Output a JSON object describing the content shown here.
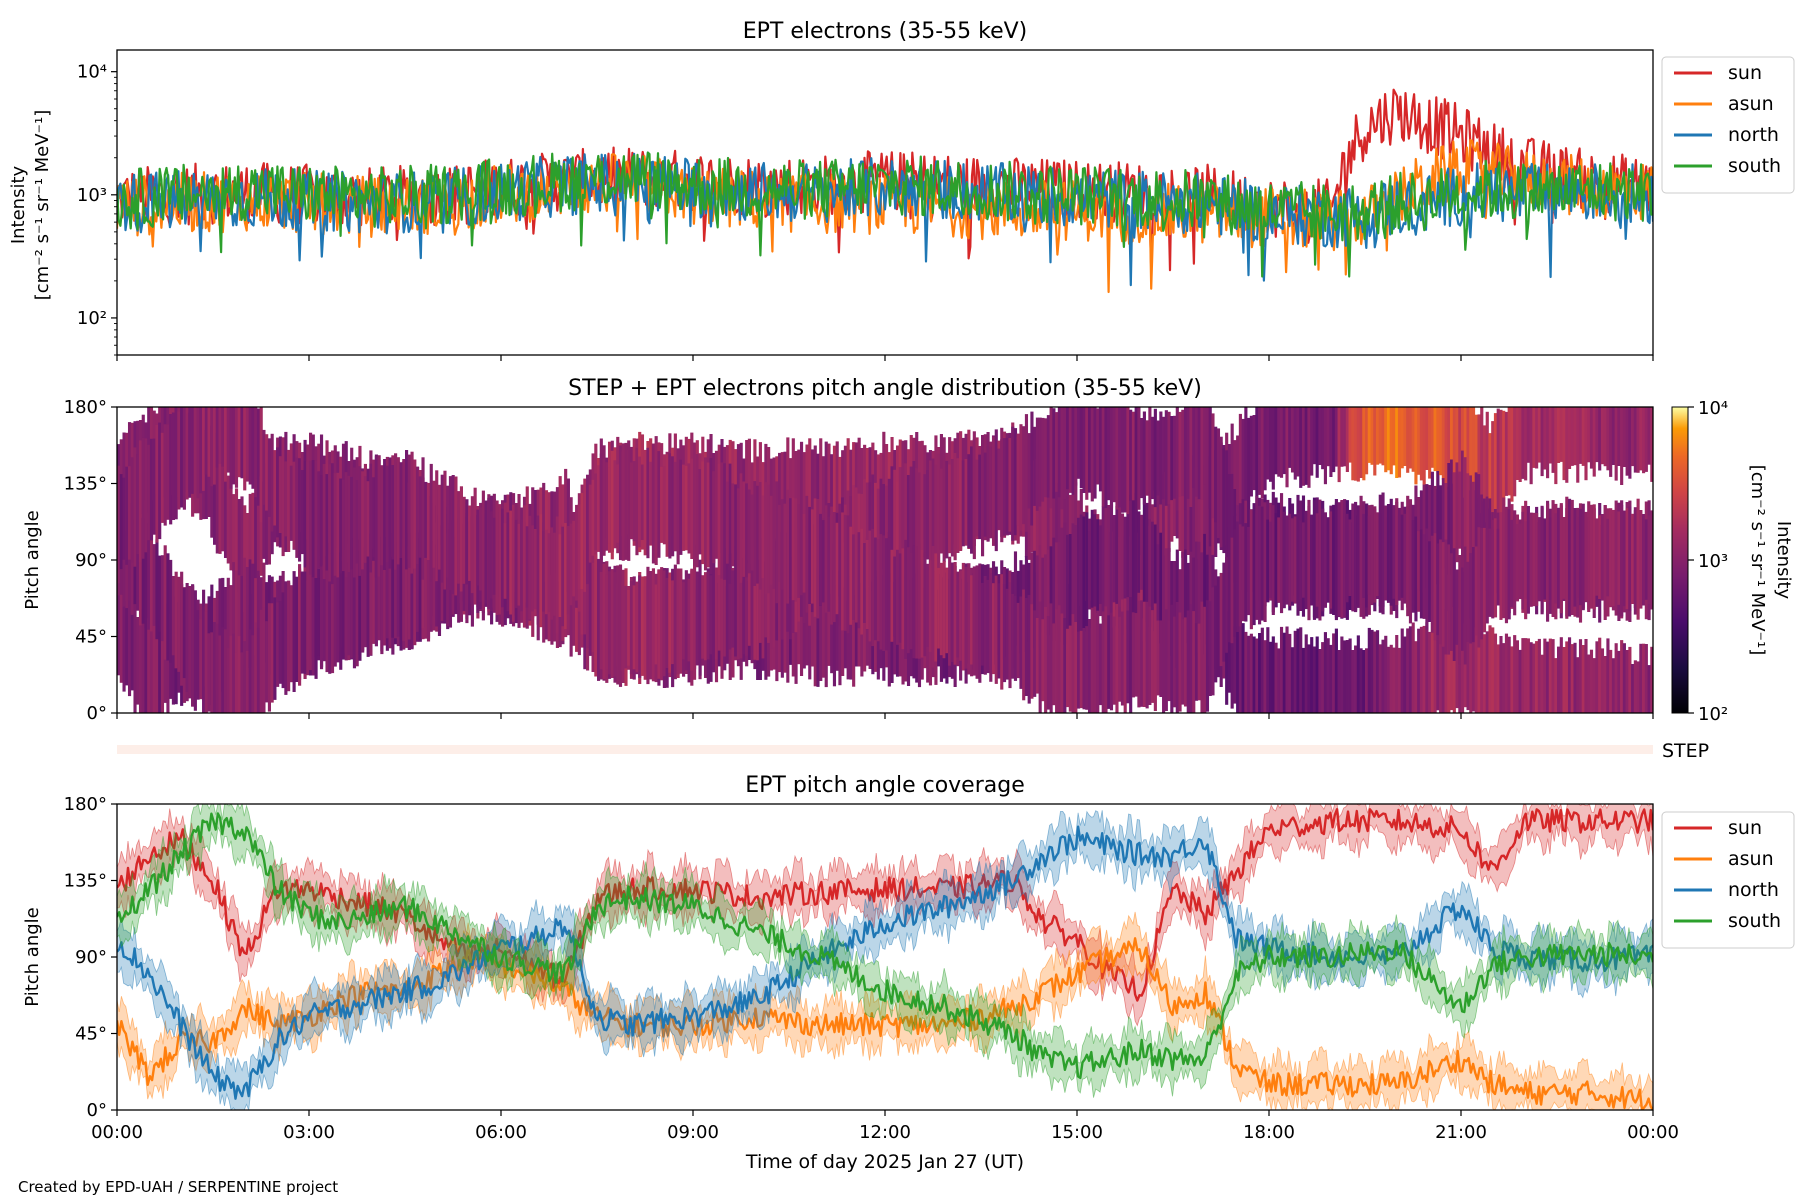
{
  "figure": {
    "footer": "Created by EPD-UAH / SERPENTINE project",
    "xlabel": "Time of day 2025 Jan 27 (UT)",
    "x_ticks": [
      "00:00",
      "03:00",
      "06:00",
      "09:00",
      "12:00",
      "15:00",
      "18:00",
      "21:00",
      "00:00"
    ]
  },
  "chart_data": [
    {
      "type": "line",
      "title": "EPT electrons (35-55 keV)",
      "ylabel_line1": "Intensity",
      "ylabel_line2": "[cm⁻² s⁻¹ sr⁻¹ MeV⁻¹]",
      "yscale": "log",
      "ylim": [
        50,
        15000
      ],
      "y_ticks": [
        {
          "value": 100,
          "label": "10²"
        },
        {
          "value": 1000,
          "label": "10³"
        },
        {
          "value": 10000,
          "label": "10⁴"
        }
      ],
      "x_unit": "hours since 2025-01-27 00:00 UT",
      "xlim": [
        0,
        24
      ],
      "legend": "outside-right-top",
      "series": [
        {
          "name": "sun",
          "color": "#d62728",
          "x": [
            0,
            1,
            2,
            3,
            4,
            5,
            6,
            7,
            8,
            9,
            10,
            11,
            12,
            13,
            14,
            15,
            16,
            17,
            18,
            19,
            19.5,
            20,
            20.5,
            21,
            21.5,
            22,
            23,
            24
          ],
          "y": [
            950,
            1000,
            1050,
            1000,
            950,
            1000,
            1150,
            1300,
            1400,
            1300,
            1200,
            1200,
            1300,
            1250,
            1150,
            1100,
            1050,
            1000,
            800,
            750,
            3500,
            4800,
            3800,
            3000,
            2200,
            1700,
            1300,
            1150
          ]
        },
        {
          "name": "asun",
          "color": "#ff7f0e",
          "x": [
            0,
            1,
            2,
            3,
            4,
            5,
            6,
            7,
            8,
            9,
            10,
            11,
            12,
            13,
            14,
            15,
            16,
            17,
            18,
            19,
            19.5,
            20,
            20.5,
            21,
            21.5,
            22,
            23,
            24
          ],
          "y": [
            800,
            850,
            900,
            850,
            800,
            850,
            1000,
            1150,
            1250,
            1000,
            900,
            850,
            850,
            800,
            750,
            750,
            700,
            700,
            650,
            600,
            650,
            900,
            1300,
            1600,
            1500,
            1300,
            1150,
            1050
          ]
        },
        {
          "name": "north",
          "color": "#1f77b4",
          "x": [
            0,
            1,
            2,
            3,
            4,
            5,
            6,
            7,
            8,
            9,
            10,
            11,
            12,
            13,
            14,
            15,
            16,
            17,
            18,
            19,
            19.5,
            20,
            20.5,
            21,
            21.5,
            22,
            23,
            24
          ],
          "y": [
            850,
            900,
            950,
            900,
            850,
            900,
            1050,
            1200,
            1300,
            1150,
            1050,
            1050,
            1150,
            1100,
            1000,
            950,
            900,
            850,
            700,
            650,
            700,
            800,
            850,
            1000,
            1050,
            1000,
            1050,
            1000
          ]
        },
        {
          "name": "south",
          "color": "#2ca02c",
          "x": [
            0,
            1,
            2,
            3,
            4,
            5,
            6,
            7,
            8,
            9,
            10,
            11,
            12,
            13,
            14,
            15,
            16,
            17,
            18,
            19,
            19.5,
            20,
            20.5,
            21,
            21.5,
            22,
            23,
            24
          ],
          "y": [
            900,
            1000,
            1100,
            1000,
            950,
            1000,
            1150,
            1300,
            1400,
            1200,
            1100,
            1100,
            1200,
            1150,
            1050,
            1000,
            950,
            900,
            750,
            700,
            750,
            850,
            900,
            1050,
            1100,
            1050,
            1100,
            1050
          ]
        }
      ]
    },
    {
      "type": "heatmap",
      "title": "STEP + EPT electrons pitch angle distribution (35-55 keV)",
      "ylabel": "Pitch angle",
      "ylim": [
        0,
        180
      ],
      "y_ticks": [
        {
          "value": 0,
          "label": "0°"
        },
        {
          "value": 45,
          "label": "45°"
        },
        {
          "value": 90,
          "label": "90°"
        },
        {
          "value": 135,
          "label": "135°"
        },
        {
          "value": 180,
          "label": "180°"
        }
      ],
      "x_unit": "hours since 2025-01-27 00:00 UT",
      "xlim": [
        0,
        24
      ],
      "colorbar": {
        "label_line1": "Intensity",
        "label_line2": "[cm⁻² s⁻¹ sr⁻¹ MeV⁻¹]",
        "scale": "log",
        "range": [
          100,
          10000
        ],
        "colormap": "inferno",
        "ticks": [
          {
            "value": 100,
            "label": "10²"
          },
          {
            "value": 1000,
            "label": "10³"
          },
          {
            "value": 10000,
            "label": "10⁴"
          }
        ]
      },
      "step_strip_label": "STEP"
    },
    {
      "type": "line",
      "title": "EPT pitch angle coverage",
      "ylabel": "Pitch angle",
      "ylim": [
        0,
        180
      ],
      "y_ticks": [
        {
          "value": 0,
          "label": "0°"
        },
        {
          "value": 45,
          "label": "45°"
        },
        {
          "value": 90,
          "label": "90°"
        },
        {
          "value": 135,
          "label": "135°"
        },
        {
          "value": 180,
          "label": "180°"
        }
      ],
      "x_unit": "hours since 2025-01-27 00:00 UT",
      "xlim": [
        0,
        24
      ],
      "legend": "outside-right-top",
      "series": [
        {
          "name": "sun",
          "color": "#d62728",
          "x": [
            0,
            0.5,
            1,
            1.5,
            2,
            2.5,
            3,
            3.5,
            4,
            4.5,
            5,
            5.5,
            6,
            6.5,
            7,
            7.5,
            8,
            9,
            10,
            11,
            12,
            13,
            14,
            14.5,
            15,
            15.5,
            16,
            16.5,
            17,
            17.5,
            18,
            19,
            20,
            21,
            21.5,
            22,
            23,
            24
          ],
          "y": [
            130,
            150,
            160,
            135,
            90,
            130,
            130,
            125,
            120,
            115,
            100,
            90,
            95,
            85,
            75,
            125,
            130,
            130,
            125,
            128,
            130,
            130,
            135,
            110,
            100,
            80,
            70,
            130,
            115,
            140,
            165,
            170,
            170,
            165,
            140,
            170,
            170,
            170
          ]
        },
        {
          "name": "asun",
          "color": "#ff7f0e",
          "x": [
            0,
            0.5,
            1,
            1.5,
            2,
            2.5,
            3,
            3.5,
            4,
            4.5,
            5,
            5.5,
            6,
            6.5,
            7,
            7.5,
            8,
            9,
            10,
            11,
            12,
            13,
            14,
            14.5,
            15,
            15.5,
            16,
            16.5,
            17,
            17.5,
            18,
            19,
            20,
            21,
            21.5,
            22,
            23,
            24
          ],
          "y": [
            50,
            20,
            40,
            40,
            60,
            50,
            55,
            65,
            70,
            70,
            80,
            90,
            85,
            80,
            70,
            55,
            50,
            50,
            55,
            50,
            50,
            50,
            60,
            70,
            80,
            90,
            95,
            60,
            70,
            25,
            15,
            15,
            15,
            30,
            15,
            10,
            10,
            5
          ]
        },
        {
          "name": "north",
          "color": "#1f77b4",
          "x": [
            0,
            0.5,
            1,
            1.5,
            2,
            2.5,
            3,
            3.5,
            4,
            4.5,
            5,
            5.5,
            6,
            6.5,
            7,
            7.5,
            8,
            9,
            10,
            11,
            12,
            13,
            14,
            14.5,
            15,
            15.5,
            16,
            16.5,
            17,
            17.5,
            18,
            19,
            20,
            21,
            21.5,
            22,
            23,
            24
          ],
          "y": [
            100,
            80,
            50,
            20,
            10,
            40,
            55,
            60,
            65,
            70,
            75,
            85,
            95,
            100,
            110,
            55,
            50,
            55,
            65,
            90,
            110,
            120,
            135,
            150,
            160,
            155,
            150,
            150,
            160,
            100,
            95,
            90,
            90,
            120,
            95,
            90,
            88,
            90
          ]
        },
        {
          "name": "south",
          "color": "#2ca02c",
          "x": [
            0,
            0.5,
            1,
            1.5,
            2,
            2.5,
            3,
            3.5,
            4,
            4.5,
            5,
            5.5,
            6,
            6.5,
            7,
            7.5,
            8,
            9,
            10,
            11,
            12,
            13,
            14,
            14.5,
            15,
            15.5,
            16,
            16.5,
            17,
            17.5,
            18,
            19,
            20,
            21,
            21.5,
            22,
            23,
            24
          ],
          "y": [
            110,
            130,
            150,
            170,
            165,
            130,
            115,
            110,
            115,
            120,
            110,
            100,
            90,
            85,
            80,
            120,
            125,
            120,
            105,
            90,
            70,
            60,
            45,
            30,
            25,
            30,
            35,
            30,
            30,
            80,
            90,
            90,
            95,
            60,
            85,
            90,
            92,
            90
          ]
        }
      ]
    }
  ]
}
